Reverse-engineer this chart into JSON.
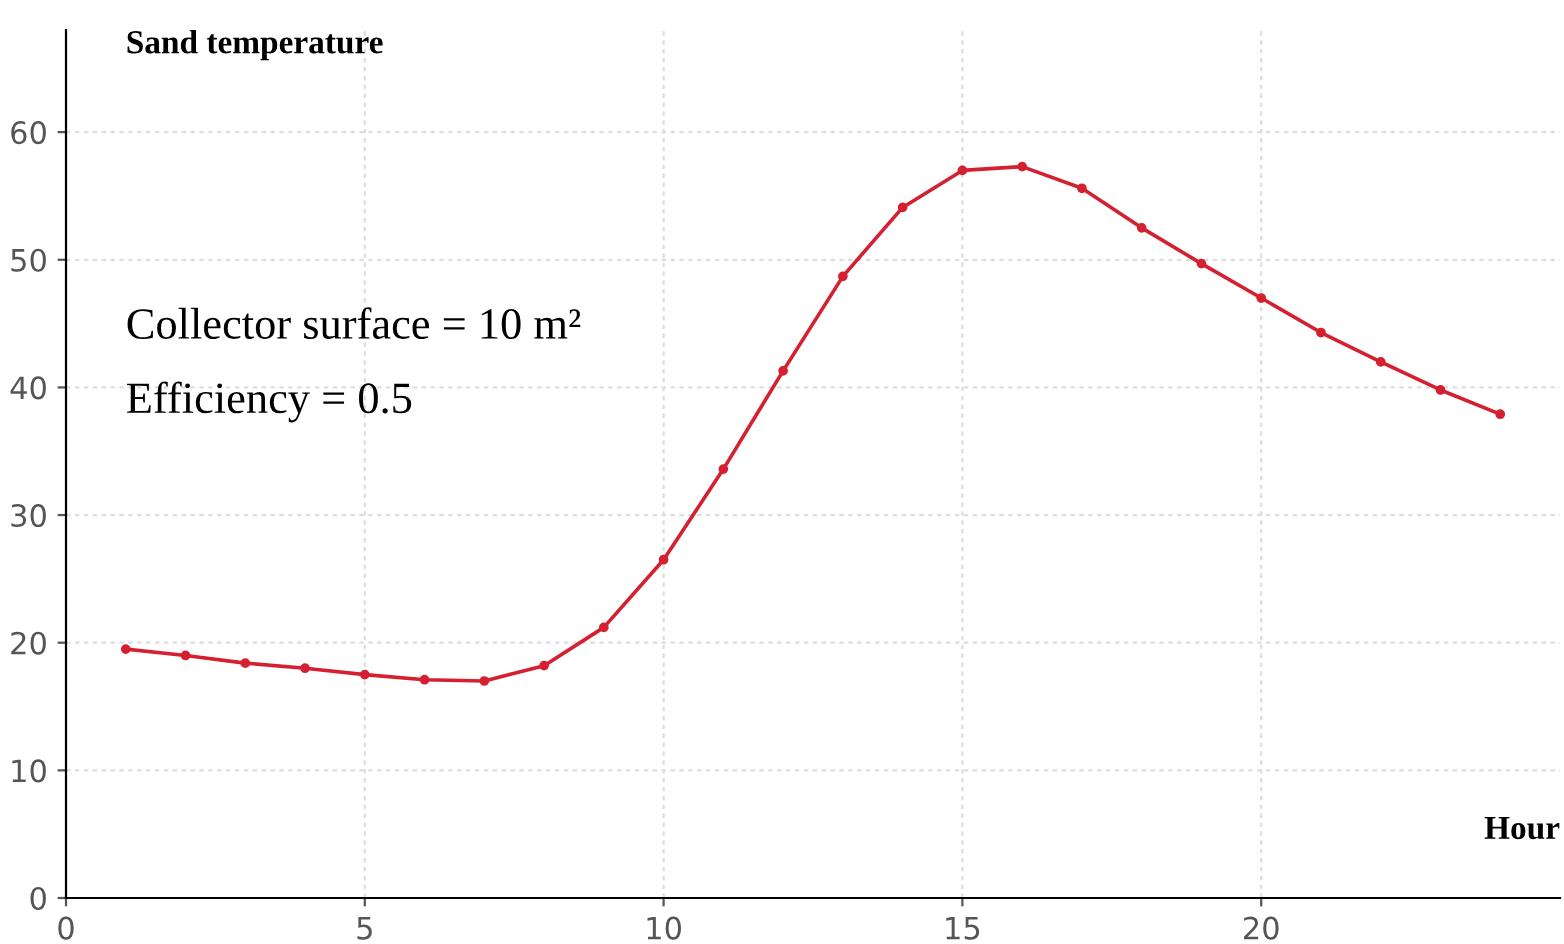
{
  "chart_data": {
    "type": "line",
    "ylabel": "Sand temperature",
    "xlabel": "Hour",
    "annotations": [
      "Collector surface = 10 m²",
      "Efficiency = 0.5"
    ],
    "x": [
      1,
      2,
      3,
      4,
      5,
      6,
      7,
      8,
      9,
      10,
      11,
      12,
      13,
      14,
      15,
      16,
      17,
      18,
      19,
      20,
      21,
      22,
      23,
      24
    ],
    "series": [
      {
        "color": "#d42030",
        "values": [
          19.5,
          19,
          18.4,
          18,
          17.5,
          17.1,
          17,
          18.2,
          21.2,
          26.5,
          33.6,
          41.3,
          48.7,
          54.1,
          57,
          57.3,
          55.6,
          52.5,
          49.7,
          47,
          44.3,
          42,
          39.8,
          37.9
        ]
      }
    ],
    "xlim": [
      0,
      25
    ],
    "ylim": [
      0,
      68
    ],
    "xticks": [
      0,
      5,
      10,
      15,
      20
    ],
    "yticks": [
      0,
      10,
      20,
      30,
      40,
      50,
      60
    ],
    "grid": true,
    "marker": "circle",
    "line_style": "solid",
    "legend": false
  }
}
